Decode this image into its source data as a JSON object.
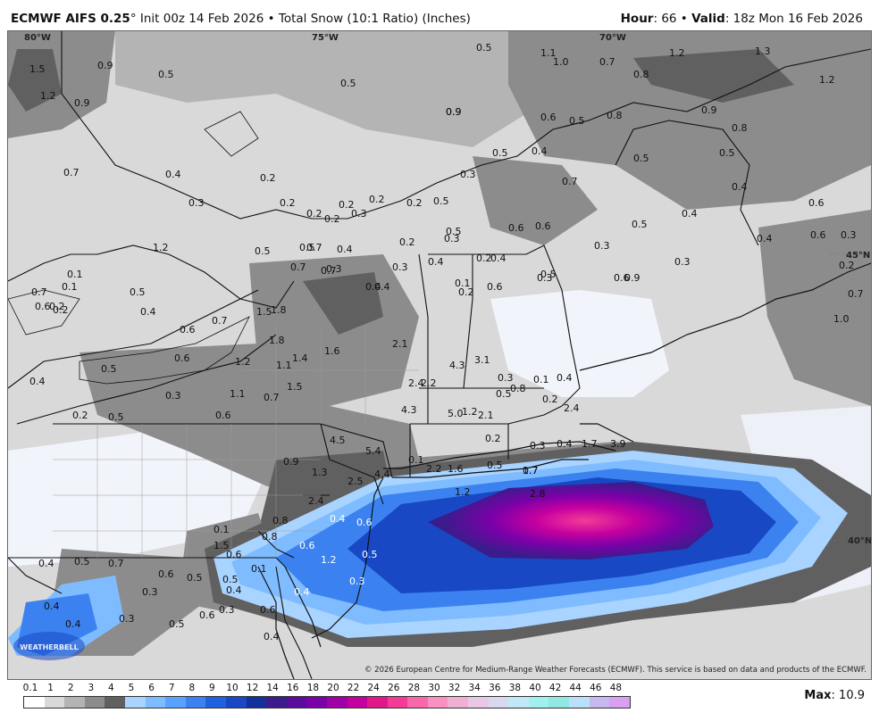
{
  "header": {
    "model": "ECMWF AIFS 0.25",
    "init": "Init 00z 14 Feb 2026",
    "product": "Total Snow (10:1 Ratio) (Inches)",
    "hour_label": "Hour",
    "hour_value": "66",
    "valid_label": "Valid",
    "valid_value": "18z Mon 16 Feb 2026"
  },
  "map": {
    "coords": [
      "80°W",
      "75°W",
      "70°W",
      "45°N",
      "40°N"
    ],
    "labels": [
      "1.5",
      "0.9",
      "0.5",
      "1.2",
      "0.9",
      "0.5",
      "0.9",
      "1.1",
      "1.0",
      "0.7",
      "0.8",
      "1.2",
      "1.3",
      "1.2",
      "0.5",
      "0.9",
      "0.6",
      "0.5",
      "0.8",
      "0.9",
      "0.8",
      "0.7",
      "0.4",
      "0.2",
      "0.3",
      "0.2",
      "0.2",
      "0.2",
      "0.2",
      "0.3",
      "0.2",
      "0.2",
      "0.5",
      "0.4",
      "0.5",
      "0.7",
      "0.5",
      "0.5",
      "0.4",
      "0.6",
      "0.3",
      "0.5",
      "0.6",
      "0.3",
      "0.4",
      "0.5",
      "0.6",
      "0.6",
      "0.4",
      "0.3",
      "0.2",
      "0.7",
      "1.0",
      "1.2",
      "0.5",
      "0.5",
      "0.3",
      "0.2",
      "0.4",
      "0.3",
      "0.2",
      "0.3",
      "0.4",
      "0.4",
      "0.7",
      "0.7",
      "0.4",
      "0.7",
      "0.3",
      "0.6",
      "0.3",
      "0.2",
      "0.4",
      "0.1",
      "0.6",
      "0.5",
      "0.9",
      "0.7",
      "0.6",
      "0.1",
      "0.1",
      "0.2",
      "0.2",
      "0.5",
      "0.4",
      "0.6",
      "0.7",
      "0.6",
      "0.5",
      "0.3",
      "0.2",
      "0.4",
      "0.5",
      "0.6",
      "0.7",
      "1.1",
      "1.2",
      "1.5",
      "1.8",
      "1.8",
      "1.4",
      "1.5",
      "1.1",
      "1.6",
      "2.1",
      "2.4",
      "2.2",
      "4.3",
      "3.1",
      "0.3",
      "0.1",
      "0.2",
      "0.4",
      "0.5",
      "0.8",
      "2.4",
      "4.3",
      "5.0",
      "1.2",
      "2.1",
      "0.2",
      "0.3",
      "0.4",
      "1.7",
      "3.9",
      "4.5",
      "5.4",
      "0.1",
      "1.6",
      "0.5",
      "0.7",
      "0.9",
      "1.3",
      "2.5",
      "4.4",
      "2.2",
      "1.2",
      "1.7",
      "2.8",
      "2.4",
      "0.4",
      "0.6",
      "0.8",
      "0.8",
      "0.6",
      "1.2",
      "0.5",
      "0.3",
      "0.1",
      "0.1",
      "1.5",
      "0.5",
      "0.4",
      "0.4",
      "0.5",
      "0.7",
      "0.6",
      "0.5",
      "0.6",
      "0.4",
      "0.3",
      "0.4",
      "0.4",
      "0.3",
      "0.5",
      "0.6",
      "0.3",
      "0.6",
      "0.4"
    ],
    "copyright": "© 2026 European Centre for Medium-Range Weather Forecasts (ECMWF). This service is based on data and products of the ECMWF.",
    "logo_text": "WEATHERBELL"
  },
  "legend": {
    "ticks": [
      "0.1",
      "1",
      "2",
      "3",
      "4",
      "5",
      "6",
      "7",
      "8",
      "9",
      "10",
      "12",
      "14",
      "16",
      "18",
      "20",
      "22",
      "24",
      "26",
      "28",
      "30",
      "32",
      "34",
      "36",
      "38",
      "40",
      "42",
      "44",
      "46",
      "48"
    ],
    "colors": [
      "#ffffff",
      "#d9d9d9",
      "#b4b4b4",
      "#8c8c8c",
      "#606060",
      "#a9d4ff",
      "#7fbcff",
      "#5aa2ff",
      "#3b82f0",
      "#1f62e0",
      "#1848c4",
      "#14309c",
      "#3a1c8c",
      "#5a0a9c",
      "#7c00a8",
      "#a000a8",
      "#c400a0",
      "#e0188c",
      "#f43c96",
      "#f868aa",
      "#f890c0",
      "#f0b0d2",
      "#e8c8e4",
      "#d8d8f0",
      "#c0e8f8",
      "#a0f0f0",
      "#90e8e0",
      "#b8e0f8",
      "#c8b8f0",
      "#d8a0f0"
    ],
    "max_label": "Max",
    "max_value": "10.9"
  }
}
